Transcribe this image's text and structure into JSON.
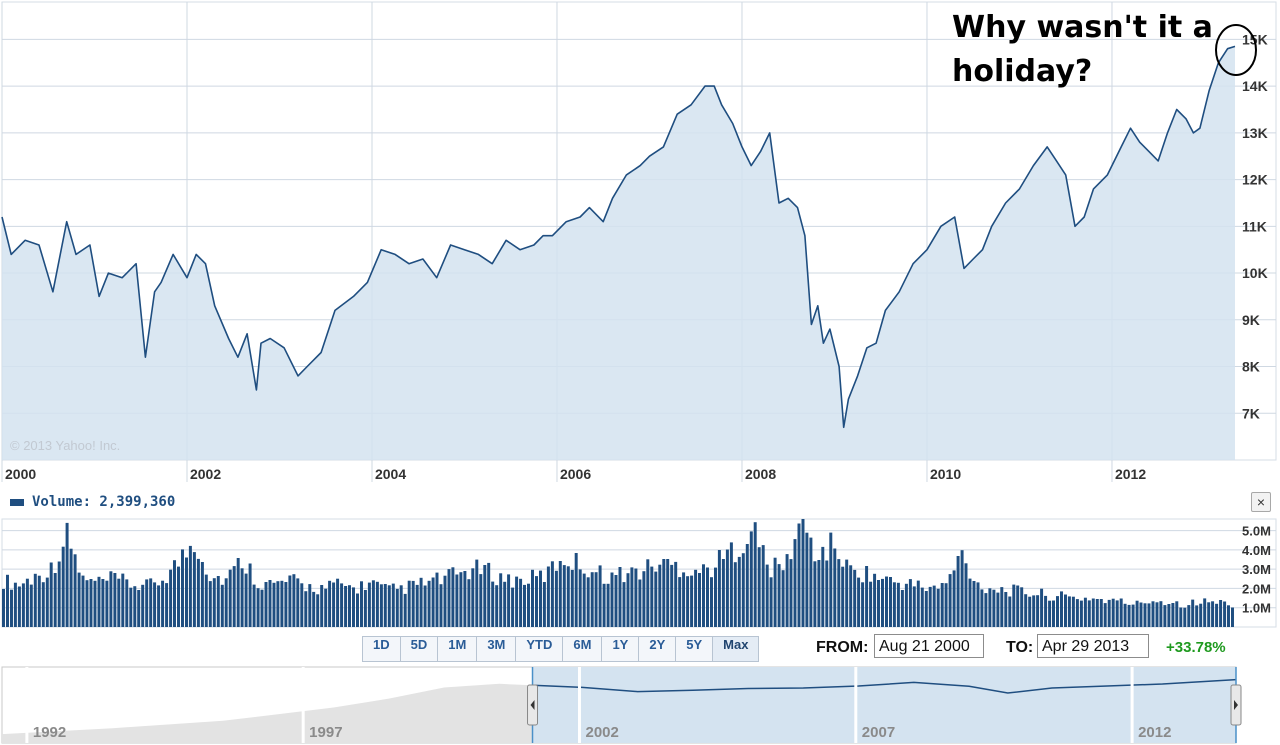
{
  "annotation": "Why wasn't it a\nholiday?",
  "copyright": "© 2013 Yahoo! Inc.",
  "volume": {
    "label": "Volume: 2,399,360"
  },
  "close_icon": "×",
  "range_buttons": [
    "1D",
    "5D",
    "1M",
    "3M",
    "YTD",
    "6M",
    "1Y",
    "2Y",
    "5Y",
    "Max"
  ],
  "active_range": "Max",
  "from": {
    "label": "FROM:",
    "value": "Aug 21 2000"
  },
  "to": {
    "label": "TO:",
    "value": "Apr 29 2013"
  },
  "change": "+33.78%",
  "colors": {
    "line": "#1f4e80",
    "area": "#d4e3f0",
    "grid": "#cfd8e2",
    "nav_gray": "#e3e3e3",
    "nav_selected": "#d4e3f0",
    "change": "#1f9a1f"
  },
  "chart_data": [
    {
      "type": "area",
      "title": "",
      "xlabel": "",
      "ylabel": "",
      "x_ticks": [
        "2000",
        "2002",
        "2004",
        "2006",
        "2008",
        "2010",
        "2012"
      ],
      "y_ticks": [
        "7K",
        "8K",
        "9K",
        "10K",
        "11K",
        "12K",
        "13K",
        "14K",
        "15K"
      ],
      "xlim": [
        2000.0,
        2013.33
      ],
      "ylim": [
        6000,
        15800
      ],
      "grid": true,
      "x": [
        2000.0,
        2000.1,
        2000.25,
        2000.4,
        2000.55,
        2000.7,
        2000.8,
        2000.95,
        2001.05,
        2001.15,
        2001.3,
        2001.45,
        2001.55,
        2001.65,
        2001.72,
        2001.85,
        2002.0,
        2002.1,
        2002.2,
        2002.3,
        2002.45,
        2002.55,
        2002.65,
        2002.75,
        2002.8,
        2002.9,
        2003.05,
        2003.2,
        2003.3,
        2003.45,
        2003.6,
        2003.8,
        2003.95,
        2004.1,
        2004.25,
        2004.4,
        2004.55,
        2004.7,
        2004.85,
        2005.0,
        2005.15,
        2005.3,
        2005.45,
        2005.6,
        2005.75,
        2005.85,
        2005.95,
        2006.1,
        2006.25,
        2006.35,
        2006.5,
        2006.6,
        2006.75,
        2006.9,
        2007.0,
        2007.15,
        2007.3,
        2007.45,
        2007.6,
        2007.7,
        2007.78,
        2007.9,
        2008.0,
        2008.1,
        2008.2,
        2008.3,
        2008.4,
        2008.5,
        2008.6,
        2008.68,
        2008.75,
        2008.82,
        2008.88,
        2008.95,
        2009.05,
        2009.1,
        2009.15,
        2009.25,
        2009.35,
        2009.45,
        2009.55,
        2009.7,
        2009.85,
        2010.0,
        2010.15,
        2010.3,
        2010.4,
        2010.5,
        2010.6,
        2010.7,
        2010.85,
        2011.0,
        2011.15,
        2011.3,
        2011.4,
        2011.5,
        2011.6,
        2011.7,
        2011.8,
        2011.95,
        2012.1,
        2012.2,
        2012.3,
        2012.4,
        2012.5,
        2012.6,
        2012.7,
        2012.8,
        2012.88,
        2012.95,
        2013.05,
        2013.15,
        2013.25,
        2013.33
      ],
      "values": [
        11200,
        10400,
        10700,
        10600,
        9600,
        11100,
        10400,
        10600,
        9500,
        10000,
        9900,
        10200,
        8200,
        9600,
        9800,
        10400,
        9900,
        10400,
        10200,
        9300,
        8600,
        8200,
        8700,
        7500,
        8500,
        8600,
        8400,
        7800,
        8000,
        8300,
        9200,
        9500,
        9800,
        10500,
        10400,
        10200,
        10300,
        9900,
        10600,
        10500,
        10400,
        10200,
        10700,
        10500,
        10600,
        10800,
        10800,
        11100,
        11200,
        11400,
        11100,
        11600,
        12100,
        12300,
        12500,
        12700,
        13400,
        13600,
        14000,
        14000,
        13600,
        13200,
        12700,
        12300,
        12600,
        13000,
        11500,
        11600,
        11400,
        10800,
        8900,
        9300,
        8500,
        8800,
        8000,
        6700,
        7300,
        7800,
        8400,
        8500,
        9200,
        9600,
        10200,
        10500,
        11000,
        11200,
        10100,
        10300,
        10500,
        11000,
        11500,
        11800,
        12300,
        12700,
        12400,
        12100,
        11000,
        11200,
        11800,
        12100,
        12700,
        13100,
        12800,
        12600,
        12400,
        13000,
        13500,
        13300,
        13000,
        13100,
        13900,
        14500,
        14800,
        14850
      ]
    },
    {
      "type": "bar",
      "title": "",
      "series": [
        {
          "name": "Volume",
          "values": [
            2.4,
            2.2,
            2.6,
            3.0,
            4.7,
            2.4,
            2.3,
            2.5,
            2.2,
            2.1,
            2.5,
            3.4,
            4.5,
            2.6,
            2.5,
            3.5,
            2.3,
            2.2,
            2.4,
            2.1,
            2.0,
            2.2,
            2.0,
            2.3,
            1.9,
            2.0,
            2.2,
            2.4,
            2.6,
            2.9,
            3.0,
            2.6,
            2.4,
            2.5,
            2.7,
            3.6,
            3.3,
            2.9,
            2.6,
            2.8,
            2.9,
            3.3,
            3.2,
            3.0,
            2.9,
            3.5,
            4.2,
            5.0,
            3.0,
            3.2,
            5.6,
            3.6,
            4.3,
            2.9,
            2.8,
            2.5,
            2.3,
            2.2,
            2.0,
            2.1,
            3.8,
            2.2,
            2.0,
            1.9,
            1.8,
            1.7,
            1.6,
            1.5,
            1.5,
            1.4,
            1.3,
            1.2,
            1.4,
            1.3,
            1.2,
            1.3,
            1.3,
            1.2
          ]
        }
      ],
      "x_start": 2000.0,
      "x_end": 2013.33,
      "y_ticks": [
        "1.0M",
        "2.0M",
        "3.0M",
        "4.0M",
        "5.0M"
      ],
      "ylim": [
        0,
        5.6
      ],
      "grid": true
    },
    {
      "type": "area",
      "title": "",
      "x_ticks": [
        "1992",
        "1997",
        "2002",
        "2007",
        "2012"
      ],
      "xlim": [
        1991.0,
        2013.33
      ],
      "selected_range": [
        2000.6,
        2013.33
      ],
      "x": [
        1991.0,
        1993.0,
        1995.0,
        1997.0,
        1998.0,
        1999.0,
        2000.0,
        2000.6,
        2001.5,
        2002.5,
        2003.5,
        2004.5,
        2005.5,
        2006.5,
        2007.5,
        2008.5,
        2009.2,
        2010.0,
        2011.0,
        2012.0,
        2013.33
      ],
      "values": [
        0.12,
        0.2,
        0.3,
        0.48,
        0.6,
        0.75,
        0.8,
        0.78,
        0.7,
        0.55,
        0.6,
        0.66,
        0.68,
        0.75,
        0.88,
        0.74,
        0.5,
        0.68,
        0.75,
        0.82,
        0.98
      ]
    }
  ]
}
